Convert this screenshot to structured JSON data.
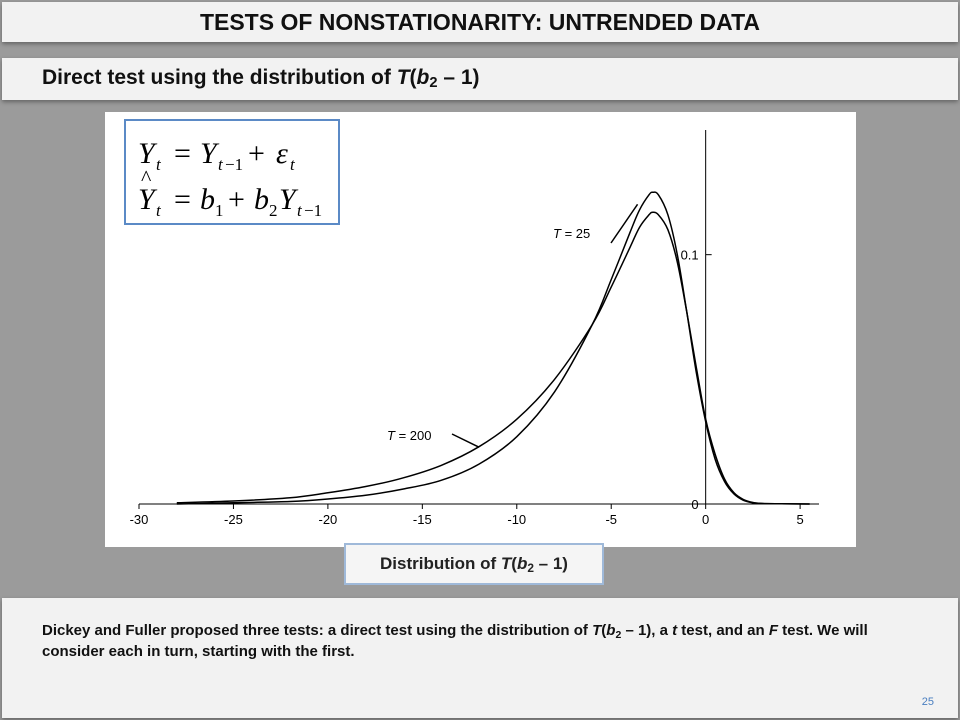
{
  "title": "TESTS OF NONSTATIONARITY: UNTRENDED DATA",
  "subtitle": {
    "pre": "Direct test using the distribution of ",
    "T": "T",
    "open": "(",
    "b": "b",
    "sub": "2",
    "post": " – 1)"
  },
  "caption": {
    "pre": "Distribution of ",
    "T": "T",
    "open": "(",
    "b": "b",
    "sub": "2",
    "post": " – 1)"
  },
  "footer": {
    "p1": "Dickey and Fuller proposed three tests:  a direct test using the distribution of ",
    "T": "T",
    "open": "(",
    "b": "b",
    "sub": "2",
    "p2": " – 1), a ",
    "t": "t",
    "p3": " test, and an ",
    "F": "F",
    "p4": " test.  We will consider each in turn, starting with the first."
  },
  "page_number": "25",
  "colors": {
    "background": "#9b9b9b",
    "bar": "#f2f2f2",
    "formula_border": "#5b8ac6",
    "page_number": "#4a7fc0"
  },
  "chart_data": {
    "type": "line",
    "x_ticks": [
      -30,
      -25,
      -20,
      -15,
      -10,
      -5,
      0,
      5
    ],
    "x_tick_labels": [
      "-30",
      "-25",
      "-20",
      "-15",
      "-10",
      "-5",
      "0",
      "5"
    ],
    "y_ticks": [
      0,
      0.1
    ],
    "y_tick_labels": [
      "0",
      "0.1"
    ],
    "xlim": [
      -30,
      6
    ],
    "ylim": [
      0,
      0.15
    ],
    "y_axis_at_x": 0,
    "grid": false,
    "series": [
      {
        "name": "T = 25",
        "label_text": {
          "T": "T",
          "rest": " = 25"
        },
        "x": [
          -28,
          -25,
          -22,
          -20,
          -18,
          -16,
          -14,
          -12,
          -10,
          -8,
          -6,
          -5,
          -4,
          -3.5,
          -3,
          -2.8,
          -2.5,
          -2,
          -1.5,
          -1,
          -0.5,
          0,
          0.5,
          1,
          1.5,
          2,
          2.5,
          3,
          4,
          5.5
        ],
        "y": [
          0,
          0.0005,
          0.001,
          0.002,
          0.0035,
          0.006,
          0.0095,
          0.016,
          0.027,
          0.045,
          0.072,
          0.09,
          0.109,
          0.118,
          0.124,
          0.125,
          0.124,
          0.116,
          0.1,
          0.077,
          0.053,
          0.033,
          0.018,
          0.009,
          0.004,
          0.0015,
          0.0005,
          0.0002,
          0.0001,
          0
        ]
      },
      {
        "name": "T = 200",
        "label_text": {
          "T": "T",
          "rest": " = 200"
        },
        "x": [
          -28,
          -25,
          -22,
          -20,
          -18,
          -16,
          -14,
          -12,
          -10,
          -8,
          -6,
          -5,
          -4,
          -3.5,
          -3,
          -2.8,
          -2.5,
          -2,
          -1.5,
          -1,
          -0.5,
          0,
          0.5,
          1,
          1.5,
          2,
          2.5,
          3,
          4,
          5.5
        ],
        "y": [
          0.0005,
          0.0012,
          0.0025,
          0.0045,
          0.007,
          0.0105,
          0.0155,
          0.023,
          0.034,
          0.05,
          0.072,
          0.087,
          0.103,
          0.111,
          0.116,
          0.117,
          0.116,
          0.11,
          0.097,
          0.077,
          0.055,
          0.034,
          0.02,
          0.01,
          0.0045,
          0.0018,
          0.0006,
          0.0002,
          0.0001,
          0
        ]
      }
    ]
  }
}
